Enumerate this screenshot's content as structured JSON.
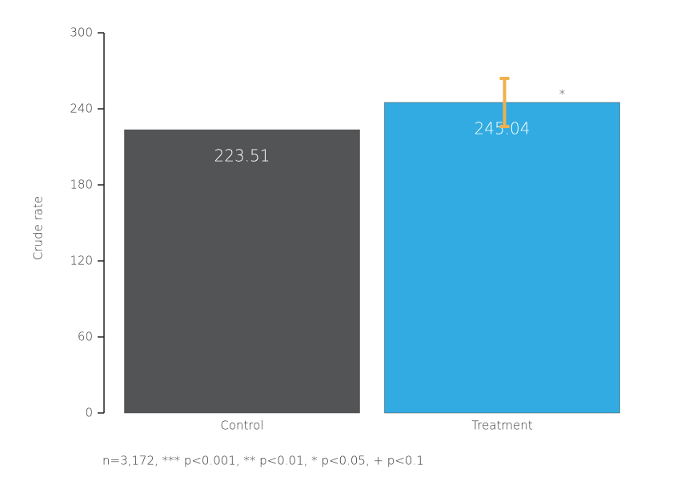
{
  "chart_data": {
    "type": "bar",
    "y_label": "Crude rate",
    "categories": [
      "Control",
      "Treatment"
    ],
    "values": [
      223.51,
      245.04
    ],
    "errors": [
      null,
      19
    ],
    "significance": [
      null,
      "*"
    ],
    "colors": [
      "#535456",
      "#31abe1"
    ],
    "error_color": "#f0b04e",
    "ylim": [
      0,
      300
    ],
    "yticks": [
      0,
      60,
      120,
      180,
      240,
      300
    ],
    "note": "n=3,172,  *** p<0.001, ** p<0.01, * p<0.05, + p<0.1"
  }
}
